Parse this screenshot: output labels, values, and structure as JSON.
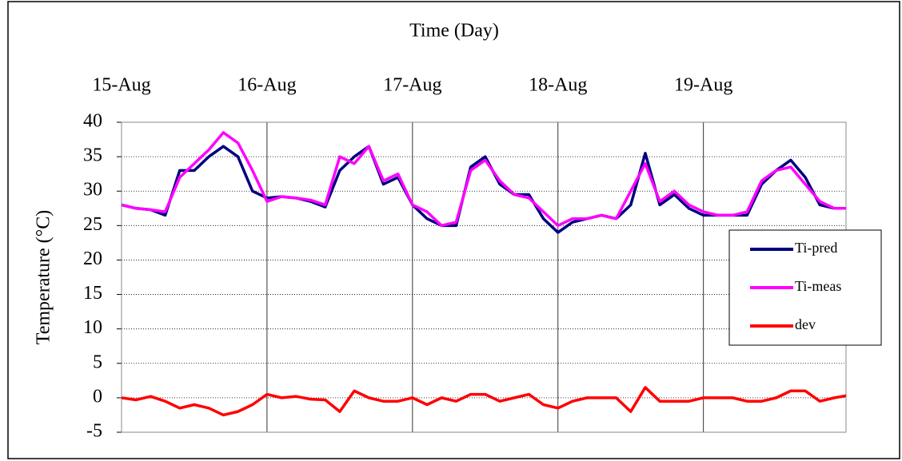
{
  "chart_data": {
    "type": "line",
    "title": "Time (Day)",
    "y_label": "Temperature (°C)",
    "x": [
      0,
      0.1,
      0.2,
      0.3,
      0.4,
      0.5,
      0.6,
      0.7,
      0.8,
      0.9,
      1.0,
      1.1,
      1.2,
      1.3,
      1.4,
      1.5,
      1.6,
      1.7,
      1.8,
      1.9,
      2.0,
      2.1,
      2.2,
      2.3,
      2.4,
      2.5,
      2.6,
      2.7,
      2.8,
      2.9,
      3.0,
      3.1,
      3.2,
      3.3,
      3.4,
      3.5,
      3.6,
      3.7,
      3.8,
      3.9,
      4.0,
      4.1,
      4.2,
      4.3,
      4.4,
      4.5,
      4.6,
      4.7,
      4.8,
      4.9,
      4.98
    ],
    "series": [
      {
        "name": "Ti-pred",
        "color": "#000080",
        "values": [
          28,
          27.5,
          27.3,
          26.5,
          33,
          33,
          35,
          36.5,
          35,
          30,
          29,
          29.2,
          29,
          28.5,
          27.7,
          33,
          35,
          36.5,
          31,
          32,
          28,
          26,
          25,
          25,
          33.5,
          35,
          31,
          29.5,
          29.5,
          26,
          24,
          25.5,
          26,
          26.5,
          26,
          28,
          35.5,
          28,
          29.5,
          27.5,
          26.5,
          26.5,
          26.5,
          26.5,
          31,
          33,
          34.5,
          32,
          28,
          27.5,
          27.5
        ]
      },
      {
        "name": "Ti-meas",
        "color": "#ff00ff",
        "values": [
          28,
          27.5,
          27.3,
          27,
          32,
          34,
          36,
          38.5,
          37,
          33,
          28.5,
          29.2,
          29,
          28.7,
          28,
          35,
          34,
          36.5,
          31.5,
          32.5,
          28,
          27,
          25,
          25.5,
          33,
          34.5,
          31.5,
          29.5,
          29,
          27,
          25,
          26,
          26,
          26.5,
          26,
          30,
          34,
          28.5,
          30,
          28,
          27,
          26.5,
          26.5,
          27,
          31.5,
          33,
          33.5,
          31,
          28.5,
          27.5,
          27.5
        ]
      },
      {
        "name": "dev",
        "color": "#ff0000",
        "values": [
          0,
          -0.3,
          0.2,
          -0.5,
          -1.5,
          -1,
          -1.5,
          -2.5,
          -2,
          -1,
          0.5,
          0,
          0.2,
          -0.2,
          -0.3,
          -2,
          1,
          0,
          -0.5,
          -0.5,
          0,
          -1,
          0,
          -0.5,
          0.5,
          0.5,
          -0.5,
          0,
          0.5,
          -1,
          -1.5,
          -0.5,
          0,
          0,
          0,
          -2,
          1.5,
          -0.5,
          -0.5,
          -0.5,
          0,
          0,
          0,
          -0.5,
          -0.5,
          0,
          1,
          1,
          -0.5,
          0,
          0.3
        ]
      }
    ],
    "xlim": [
      0,
      4.98
    ],
    "xticks": [
      {
        "value": 0,
        "label": "15-Aug"
      },
      {
        "value": 1,
        "label": "16-Aug"
      },
      {
        "value": 2,
        "label": "17-Aug"
      },
      {
        "value": 3,
        "label": "18-Aug"
      },
      {
        "value": 4,
        "label": "19-Aug"
      }
    ],
    "ylim": [
      -5,
      40
    ],
    "yticks": [
      -5,
      0,
      5,
      10,
      15,
      20,
      25,
      30,
      35,
      40
    ],
    "grid": true,
    "legend": "right"
  }
}
